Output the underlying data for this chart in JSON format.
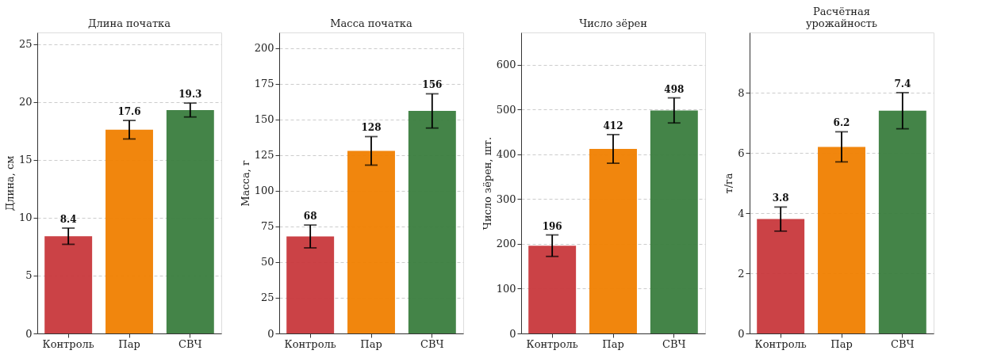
{
  "chart_data": [
    {
      "type": "bar",
      "title": "Длина початка",
      "ylabel": "Длина, см",
      "categories": [
        "Контроль",
        "Пар",
        "СВЧ"
      ],
      "values": [
        8.4,
        17.6,
        19.3
      ],
      "errors": [
        0.7,
        0.8,
        0.6
      ],
      "colors": [
        "#c8383c",
        "#f07f00",
        "#3a7d3e"
      ],
      "ylim": [
        0,
        26
      ],
      "yticks": [
        0,
        5,
        10,
        15,
        20,
        25
      ],
      "grid": "y",
      "data_labels": true
    },
    {
      "type": "bar",
      "title": "Масса початка",
      "ylabel": "Масса, г",
      "categories": [
        "Контроль",
        "Пар",
        "СВЧ"
      ],
      "values": [
        68,
        128,
        156
      ],
      "errors": [
        8,
        10,
        12
      ],
      "colors": [
        "#c8383c",
        "#f07f00",
        "#3a7d3e"
      ],
      "ylim": [
        0,
        211
      ],
      "yticks": [
        0,
        25,
        50,
        75,
        100,
        125,
        150,
        175,
        200
      ],
      "grid": "y",
      "data_labels": true
    },
    {
      "type": "bar",
      "title": "Число зёрен",
      "ylabel": "Число зёрен, шт.",
      "categories": [
        "Контроль",
        "Пар",
        "СВЧ"
      ],
      "values": [
        196,
        412,
        498
      ],
      "errors": [
        24,
        32,
        28
      ],
      "colors": [
        "#c8383c",
        "#f07f00",
        "#3a7d3e"
      ],
      "ylim": [
        0,
        672
      ],
      "yticks": [
        0,
        100,
        200,
        300,
        400,
        500,
        600
      ],
      "grid": "y",
      "data_labels": true
    },
    {
      "type": "bar",
      "title": "Расчётная\nурожайность",
      "ylabel": "т/га",
      "categories": [
        "Контроль",
        "Пар",
        "СВЧ"
      ],
      "values": [
        3.8,
        6.2,
        7.4
      ],
      "errors": [
        0.4,
        0.5,
        0.6
      ],
      "colors": [
        "#c8383c",
        "#f07f00",
        "#3a7d3e"
      ],
      "ylim": [
        0,
        10
      ],
      "yticks": [
        0,
        2,
        4,
        6,
        8
      ],
      "grid": "y",
      "data_labels": true
    }
  ]
}
